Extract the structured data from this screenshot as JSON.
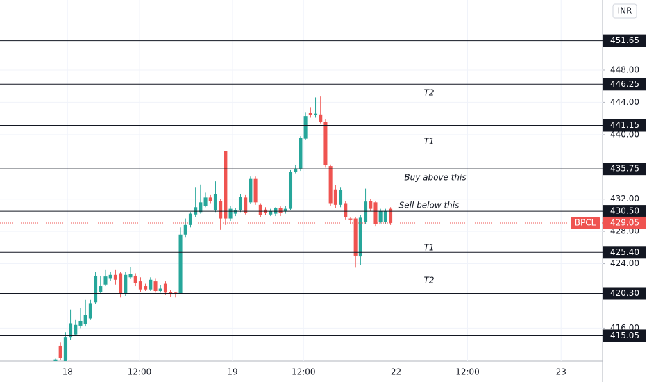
{
  "chart_data": {
    "type": "candlestick",
    "symbol": "BPCL",
    "currency": "INR",
    "up_color": "#26a69a",
    "down_color": "#ef5350",
    "open": [
      411.9,
      413.8,
      411.9,
      414.9,
      415.2,
      416.3,
      416.5,
      417.2,
      419.2,
      420.5,
      421.4,
      422.2,
      422.6,
      422.8,
      420.3,
      422.3,
      422.5,
      421.8,
      421.2,
      420.8,
      421.8,
      420.6,
      421.5,
      420.5,
      420.4,
      420.3,
      427.6,
      428.8,
      430.1,
      430.4,
      431.2,
      432.2,
      430.6,
      431.8,
      438,
      429.6,
      430.2,
      430.6,
      432.2,
      431.6,
      434.5,
      431.3,
      430.7,
      430.1,
      430.2,
      430.9,
      430.5,
      430.8,
      435.4,
      435.8,
      439.5,
      442.7,
      442.4,
      442.5,
      441.6,
      436.1,
      433.2,
      431.3,
      431.5,
      429.6,
      429.6,
      424.9,
      429.2,
      431.8,
      431.6,
      429.2,
      429.2,
      430.8
    ],
    "high": [
      412.2,
      414.2,
      415.5,
      418.3,
      417,
      418.5,
      419.5,
      419.5,
      423,
      422.5,
      423.2,
      423,
      423.2,
      423,
      423,
      423.6,
      422.8,
      422.3,
      421.5,
      422.3,
      422.2,
      421.3,
      421.8,
      420.7,
      420.5,
      428.5,
      429.6,
      430.4,
      433.5,
      433.8,
      432.8,
      432.5,
      434.2,
      432,
      438,
      431.2,
      430.9,
      432.6,
      432.5,
      434.8,
      434.8,
      431.5,
      431,
      430.8,
      431,
      431.1,
      431.2,
      435.6,
      436.2,
      439.8,
      442.8,
      443.4,
      444.6,
      444.8,
      441.9,
      436.3,
      433.7,
      433.5,
      431.8,
      429.8,
      429.8,
      430,
      433.3,
      432,
      431.8,
      430.8,
      430.8,
      431
    ],
    "low": [
      411.5,
      412,
      411.5,
      414.5,
      415,
      416,
      416.2,
      417,
      419,
      420.2,
      421.2,
      421.9,
      421.4,
      419.8,
      420,
      422.1,
      421.2,
      420.5,
      420.6,
      420.6,
      420.4,
      420.4,
      420.1,
      419.9,
      419.8,
      420.2,
      427.3,
      428.5,
      429.8,
      430.2,
      431,
      431.5,
      430.4,
      428.2,
      428.8,
      429.3,
      429.9,
      430.4,
      430.1,
      431.4,
      431.3,
      429.8,
      430,
      429.9,
      429.9,
      429.9,
      430.2,
      430.6,
      435.2,
      435.5,
      439.3,
      442.1,
      442.1,
      441.4,
      435.9,
      431.2,
      430.9,
      431,
      429.4,
      428.9,
      423.5,
      423.8,
      428.9,
      430.5,
      428.6,
      429,
      428.9,
      428.8
    ],
    "close": [
      412.1,
      412.3,
      414.9,
      416.6,
      416.4,
      416.9,
      417.6,
      419.1,
      422.5,
      421.2,
      422.4,
      422.6,
      422,
      420.2,
      422.6,
      422.7,
      421.6,
      420.8,
      420.8,
      422,
      420.6,
      420.9,
      420.4,
      420.2,
      420.2,
      427.6,
      428.8,
      430.2,
      431,
      431.6,
      432.2,
      431.8,
      432.6,
      429.6,
      429.6,
      430.8,
      430.6,
      432.3,
      430.3,
      434.5,
      431.6,
      430,
      430.3,
      430.5,
      430.9,
      430.3,
      430.8,
      435.4,
      435.8,
      439.6,
      442.3,
      442.4,
      442.6,
      441.6,
      436.2,
      431.5,
      431.3,
      433.1,
      429.8,
      429.4,
      425,
      429.7,
      431.7,
      430.8,
      428.9,
      430.5,
      430.5,
      429.05
    ],
    "xlim": [
      -11.1,
      109.4
    ],
    "xticks": [
      {
        "value": 2.4,
        "label": "18"
      },
      {
        "value": 16.8,
        "label": "12:00"
      },
      {
        "value": 35.4,
        "label": "19"
      },
      {
        "value": 49.6,
        "label": "12:00"
      },
      {
        "value": 68.1,
        "label": "22"
      },
      {
        "value": 82.4,
        "label": "12:00"
      },
      {
        "value": 101.1,
        "label": "23"
      }
    ],
    "ylim": [
      411.9,
      456.7
    ],
    "yticks": [
      {
        "value": 416,
        "label": "416.00"
      },
      {
        "value": 424,
        "label": "424.00"
      },
      {
        "value": 428,
        "label": "428.00"
      },
      {
        "value": 432,
        "label": "432.00"
      },
      {
        "value": 440,
        "label": "440.00"
      },
      {
        "value": 444,
        "label": "444.00"
      },
      {
        "value": 448,
        "label": "448.00"
      }
    ],
    "grid": true,
    "levels": {
      "values": [
        451.65,
        446.25,
        441.15,
        435.75,
        430.5,
        425.4,
        420.3,
        415.05
      ],
      "value_labels": [
        "451.65",
        "446.25",
        "441.15",
        "435.75",
        "430.50",
        "425.40",
        "420.30",
        "415.05"
      ],
      "color": "#131722"
    },
    "last_price": 429.05,
    "last_price_color": "#ef5350",
    "annotations": [
      "T2",
      "T1",
      "Buy above this",
      "Sell below this",
      "T1",
      "T2"
    ]
  }
}
